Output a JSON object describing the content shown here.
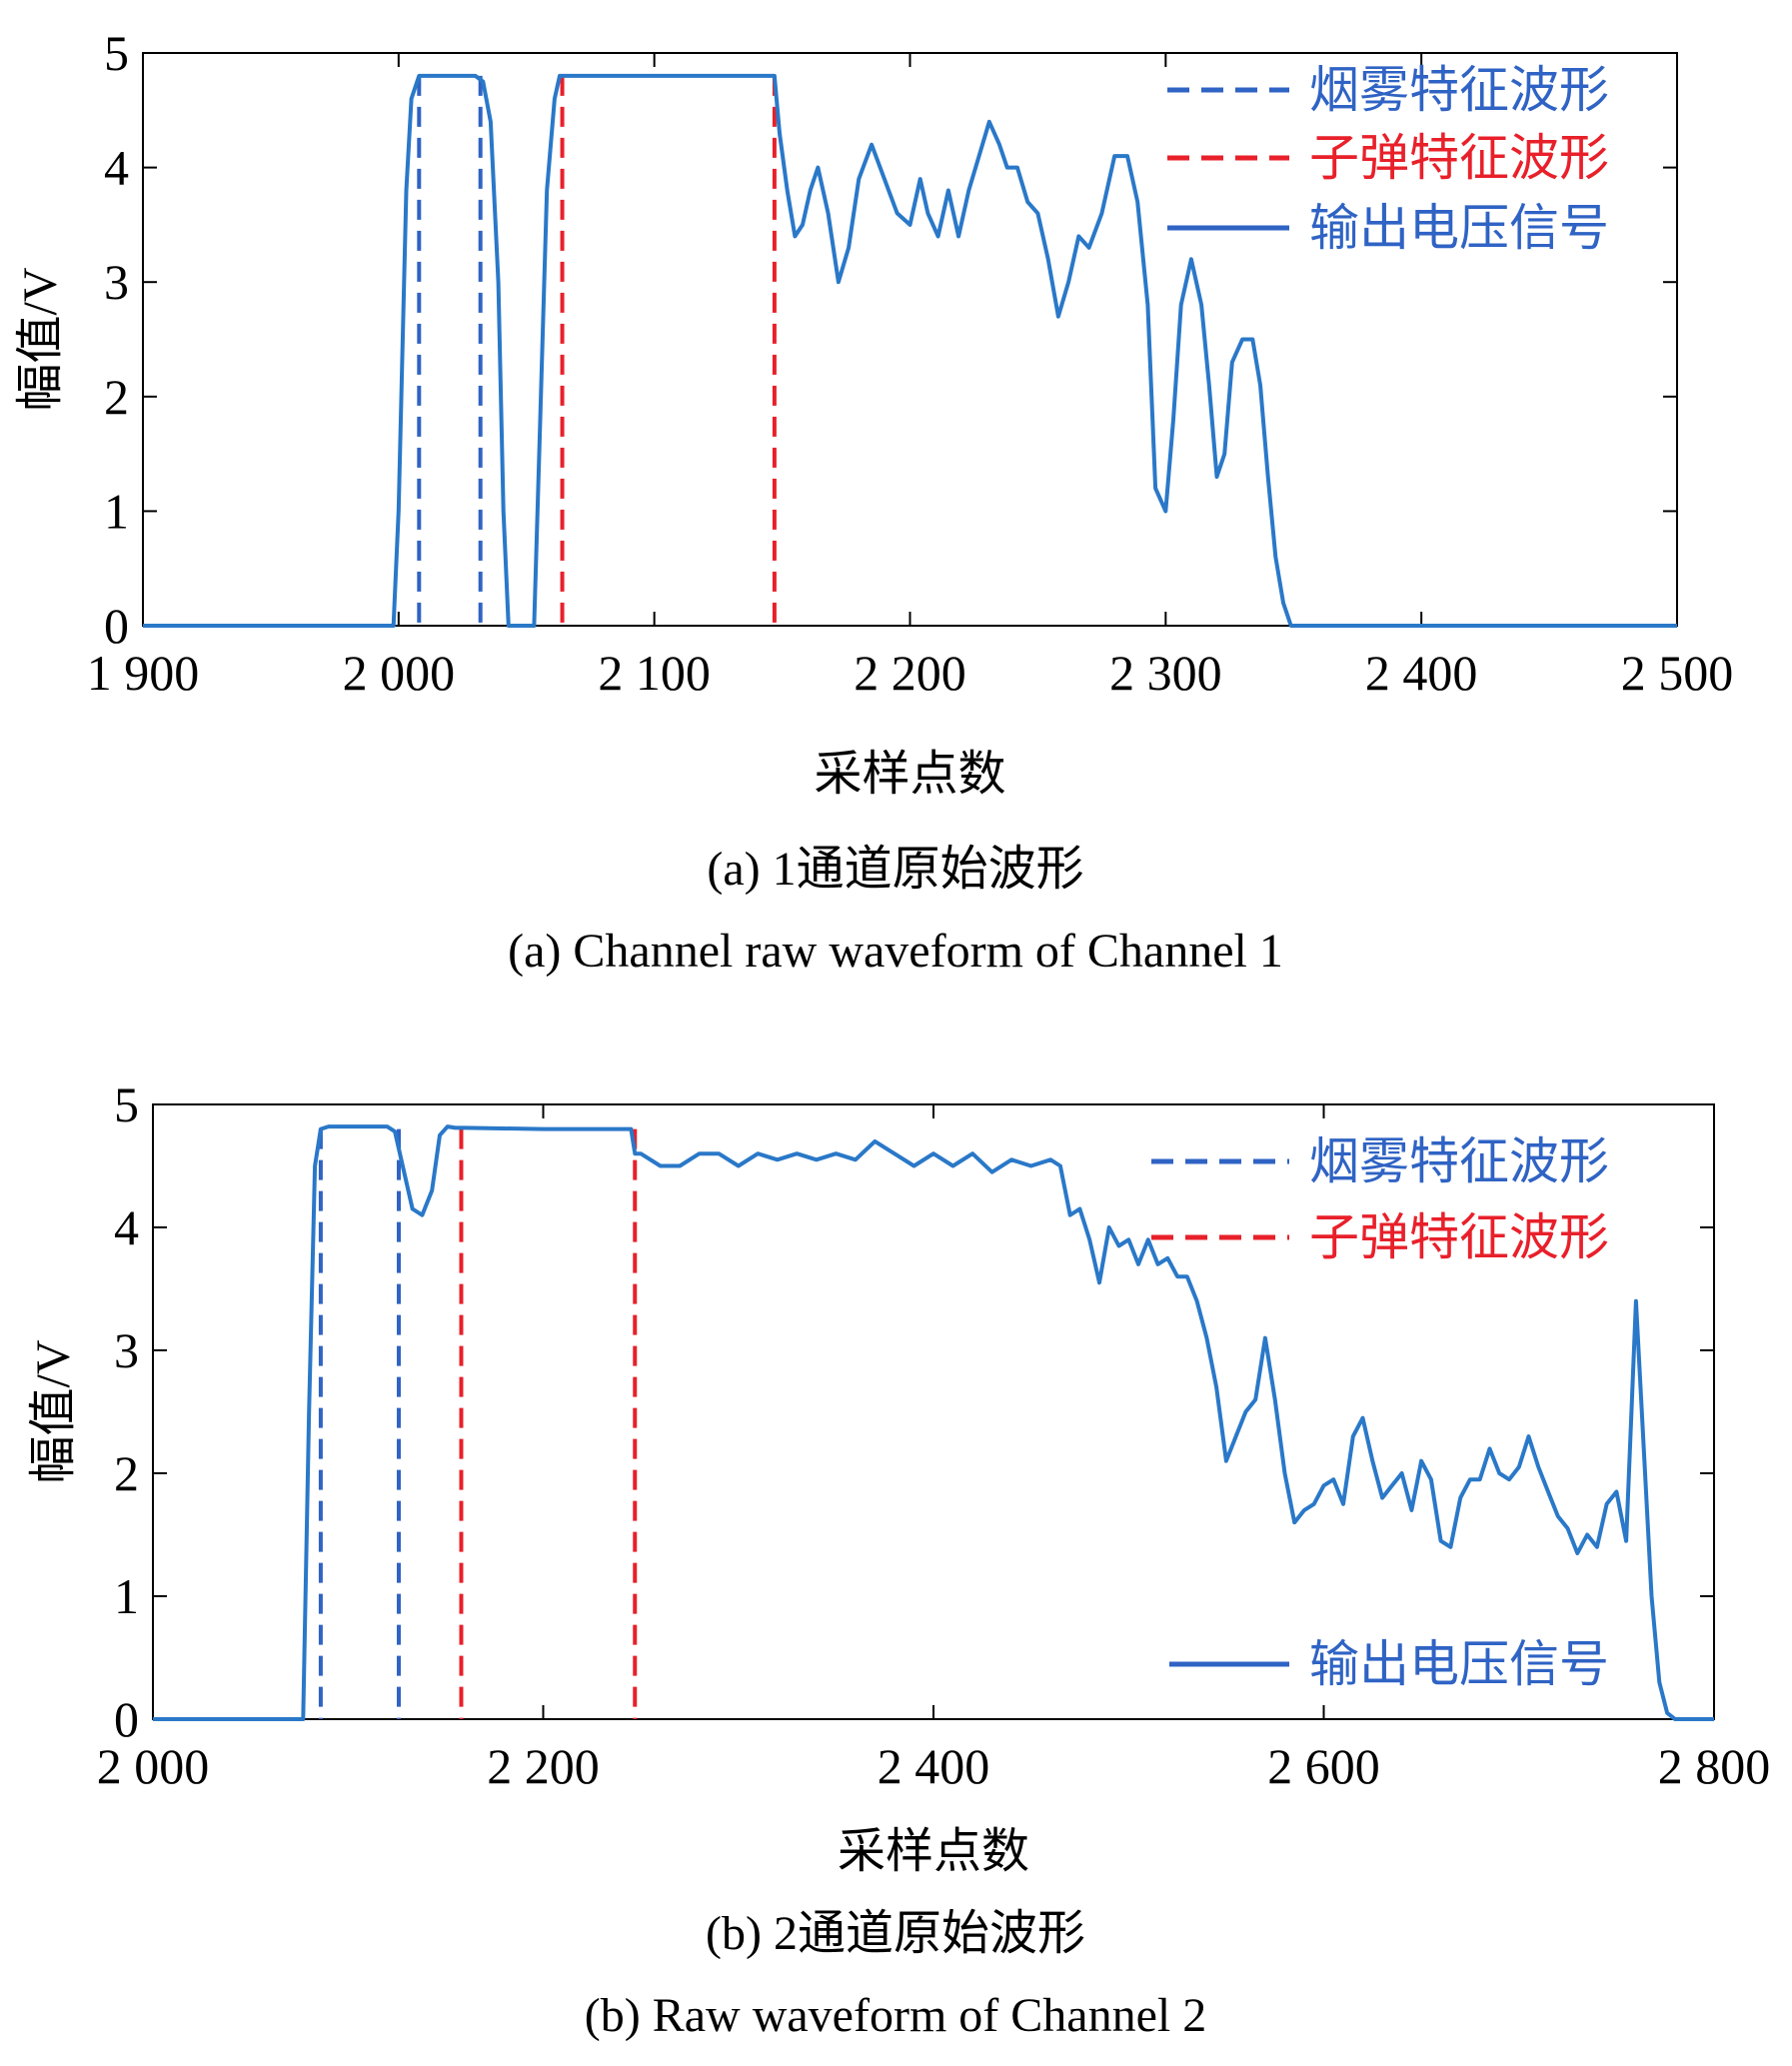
{
  "chart_data": [
    {
      "panel": "a",
      "type": "line",
      "xlabel": "采样点数",
      "ylabel": "幅值/V",
      "caption_cn": "(a) 1通道原始波形",
      "caption_en": "(a) Channel raw waveform of Channel 1",
      "xlim": [
        1900,
        2500
      ],
      "ylim": [
        0,
        5
      ],
      "xticks": [
        1900,
        2000,
        2100,
        2200,
        2300,
        2400,
        2500
      ],
      "xtick_labels": [
        "1 900",
        "2 000",
        "2 100",
        "2 200",
        "2 300",
        "2 400",
        "2 500"
      ],
      "yticks": [
        0,
        1,
        2,
        3,
        4,
        5
      ],
      "ytick_labels": [
        "0",
        "1",
        "2",
        "3",
        "4",
        "5"
      ],
      "grid": false,
      "legend_position": "top-right",
      "legend": [
        {
          "label": "烟雾特征波形",
          "style": "dashed",
          "color": "#2f63c4"
        },
        {
          "label": "子弹特征波形",
          "style": "dashed",
          "color": "#e8202a"
        },
        {
          "label": "输出电压信号",
          "style": "solid",
          "color": "#2f63c4"
        }
      ],
      "series": [
        {
          "name": "输出电压信号",
          "color": "#2a78c8",
          "x": [
            1900,
            1998,
            2000,
            2003,
            2005,
            2008,
            2030,
            2033,
            2036,
            2039,
            2041,
            2043,
            2053,
            2055,
            2058,
            2061,
            2063,
            2066,
            2100,
            2147,
            2149,
            2152,
            2155,
            2158,
            2161,
            2164,
            2168,
            2172,
            2176,
            2180,
            2185,
            2190,
            2195,
            2200,
            2204,
            2207,
            2211,
            2215,
            2219,
            2223,
            2227,
            2231,
            2235,
            2238,
            2242,
            2246,
            2250,
            2254,
            2258,
            2262,
            2266,
            2270,
            2275,
            2280,
            2285,
            2289,
            2293,
            2296,
            2300,
            2303,
            2306,
            2310,
            2314,
            2317,
            2320,
            2323,
            2326,
            2330,
            2334,
            2337,
            2340,
            2343,
            2346,
            2349,
            2352,
            2500
          ],
          "y": [
            0,
            0,
            1.0,
            3.8,
            4.6,
            4.8,
            4.8,
            4.75,
            4.4,
            3.0,
            1.0,
            0,
            0,
            1.5,
            3.8,
            4.6,
            4.8,
            4.8,
            4.8,
            4.8,
            4.3,
            3.8,
            3.4,
            3.5,
            3.8,
            4.0,
            3.6,
            3.0,
            3.3,
            3.9,
            4.2,
            3.9,
            3.6,
            3.5,
            3.9,
            3.6,
            3.4,
            3.8,
            3.4,
            3.8,
            4.1,
            4.4,
            4.2,
            4.0,
            4.0,
            3.7,
            3.6,
            3.2,
            2.7,
            3.0,
            3.4,
            3.3,
            3.6,
            4.1,
            4.1,
            3.7,
            2.8,
            1.2,
            1.0,
            1.8,
            2.8,
            3.2,
            2.8,
            2.1,
            1.3,
            1.5,
            2.3,
            2.5,
            2.5,
            2.1,
            1.3,
            0.6,
            0.2,
            0,
            0,
            0
          ]
        }
      ],
      "markers": [
        {
          "group": "烟雾特征波形",
          "color": "#2f63c4",
          "x": [
            2008,
            2032
          ]
        },
        {
          "group": "子弹特征波形",
          "color": "#e8202a",
          "x": [
            2064,
            2147
          ]
        }
      ]
    },
    {
      "panel": "b",
      "type": "line",
      "xlabel": "采样点数",
      "ylabel": "幅值/V",
      "caption_cn": "(b) 2通道原始波形",
      "caption_en": "(b) Raw waveform of Channel 2",
      "xlim": [
        2000,
        2800
      ],
      "ylim": [
        0,
        5
      ],
      "xticks": [
        2000,
        2200,
        2400,
        2600,
        2800
      ],
      "xtick_labels": [
        "2 000",
        "2 200",
        "2 400",
        "2 600",
        "2 800"
      ],
      "yticks": [
        0,
        1,
        2,
        3,
        4,
        5
      ],
      "ytick_labels": [
        "0",
        "1",
        "2",
        "3",
        "4",
        "5"
      ],
      "grid": false,
      "legend_position": "top-right",
      "legend": [
        {
          "label": "烟雾特征波形",
          "style": "dashed",
          "color": "#2f63c4"
        },
        {
          "label": "子弹特征波形",
          "style": "dashed",
          "color": "#e8202a"
        },
        {
          "label": "输出电压信号",
          "style": "solid",
          "color": "#2f63c4"
        }
      ],
      "series": [
        {
          "name": "输出电压信号",
          "color": "#2a78c8",
          "x": [
            2000,
            2077,
            2080,
            2083,
            2086,
            2090,
            2100,
            2120,
            2124,
            2128,
            2133,
            2138,
            2143,
            2147,
            2151,
            2155,
            2160,
            2200,
            2245,
            2247,
            2250,
            2260,
            2270,
            2280,
            2290,
            2300,
            2310,
            2320,
            2330,
            2340,
            2350,
            2360,
            2370,
            2380,
            2390,
            2400,
            2410,
            2420,
            2430,
            2440,
            2450,
            2460,
            2465,
            2470,
            2475,
            2480,
            2485,
            2490,
            2495,
            2500,
            2505,
            2510,
            2515,
            2520,
            2525,
            2530,
            2535,
            2540,
            2545,
            2550,
            2555,
            2560,
            2565,
            2570,
            2575,
            2580,
            2585,
            2590,
            2595,
            2600,
            2605,
            2610,
            2615,
            2620,
            2625,
            2630,
            2635,
            2640,
            2645,
            2650,
            2655,
            2660,
            2665,
            2670,
            2675,
            2680,
            2685,
            2690,
            2695,
            2700,
            2705,
            2710,
            2715,
            2720,
            2725,
            2730,
            2735,
            2740,
            2745,
            2750,
            2755,
            2760,
            2764,
            2768,
            2772,
            2776,
            2780,
            2785,
            2800
          ],
          "y": [
            0,
            0,
            2.5,
            4.5,
            4.8,
            4.82,
            4.82,
            4.82,
            4.78,
            4.5,
            4.15,
            4.1,
            4.3,
            4.75,
            4.82,
            4.81,
            4.81,
            4.8,
            4.8,
            4.6,
            4.6,
            4.5,
            4.5,
            4.6,
            4.6,
            4.5,
            4.6,
            4.55,
            4.6,
            4.55,
            4.6,
            4.55,
            4.7,
            4.6,
            4.5,
            4.6,
            4.5,
            4.6,
            4.45,
            4.55,
            4.5,
            4.55,
            4.5,
            4.1,
            4.15,
            3.9,
            3.55,
            4.0,
            3.85,
            3.9,
            3.7,
            3.9,
            3.7,
            3.75,
            3.6,
            3.6,
            3.4,
            3.1,
            2.7,
            2.1,
            2.3,
            2.5,
            2.6,
            3.1,
            2.6,
            2.0,
            1.6,
            1.7,
            1.75,
            1.9,
            1.95,
            1.75,
            2.3,
            2.45,
            2.1,
            1.8,
            1.9,
            2.0,
            1.7,
            2.1,
            1.95,
            1.45,
            1.4,
            1.8,
            1.95,
            1.95,
            2.2,
            2.0,
            1.95,
            2.05,
            2.3,
            2.05,
            1.85,
            1.65,
            1.55,
            1.35,
            1.5,
            1.4,
            1.75,
            1.85,
            1.45,
            3.4,
            2.2,
            1.0,
            0.3,
            0.05,
            0,
            0,
            0
          ]
        }
      ],
      "markers": [
        {
          "group": "烟雾特征波形",
          "color": "#2f63c4",
          "x": [
            2086,
            2126
          ]
        },
        {
          "group": "子弹特征波形",
          "color": "#e8202a",
          "x": [
            2158,
            2247
          ]
        }
      ]
    }
  ]
}
